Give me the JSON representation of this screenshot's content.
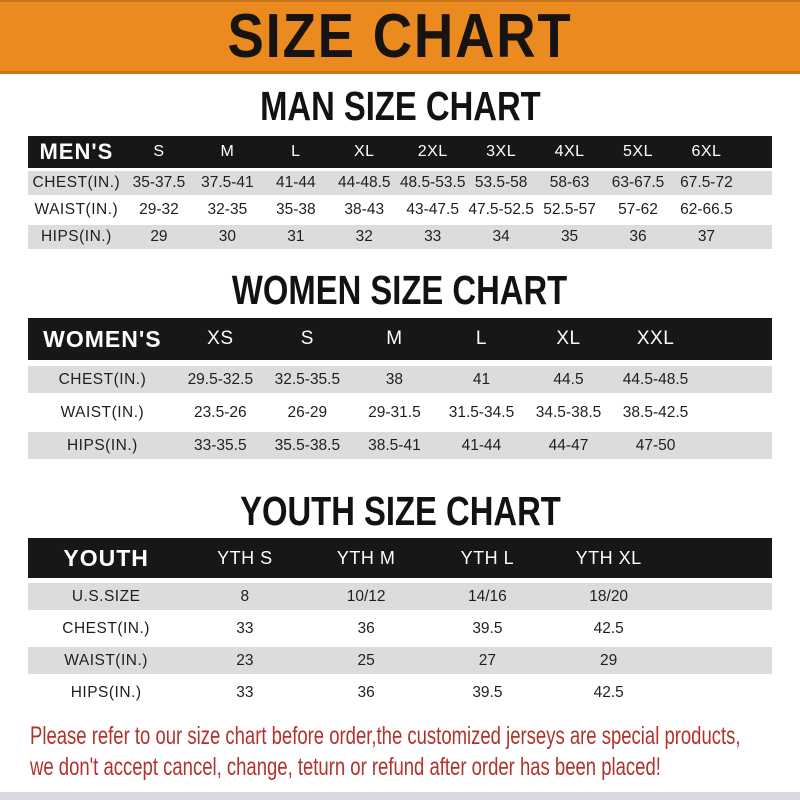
{
  "banner": {
    "title": "SIZE CHART"
  },
  "sections": [
    {
      "heading": "MAN SIZE CHART",
      "table": {
        "header": [
          "MEN'S",
          "S",
          "M",
          "L",
          "XL",
          "2XL",
          "3XL",
          "4XL",
          "5XL",
          "6XL"
        ],
        "rows": [
          [
            "CHEST(IN.)",
            "35-37.5",
            "37.5-41",
            "41-44",
            "44-48.5",
            "48.5-53.5",
            "53.5-58",
            "58-63",
            "63-67.5",
            "67.5-72"
          ],
          [
            "WAIST(IN.)",
            "29-32",
            "32-35",
            "35-38",
            "38-43",
            "43-47.5",
            "47.5-52.5",
            "52.5-57",
            "57-62",
            "62-66.5"
          ],
          [
            "HIPS(IN.)",
            "29",
            "30",
            "31",
            "32",
            "33",
            "34",
            "35",
            "36",
            "37"
          ]
        ]
      }
    },
    {
      "heading": "WOMEN SIZE CHART",
      "table": {
        "header": [
          "WOMEN'S",
          "XS",
          "S",
          "M",
          "L",
          "XL",
          "XXL"
        ],
        "rows": [
          [
            "CHEST(IN.)",
            "29.5-32.5",
            "32.5-35.5",
            "38",
            "41",
            "44.5",
            "44.5-48.5"
          ],
          [
            "WAIST(IN.)",
            "23.5-26",
            "26-29",
            "29-31.5",
            "31.5-34.5",
            "34.5-38.5",
            "38.5-42.5"
          ],
          [
            "HIPS(IN.)",
            "33-35.5",
            "35.5-38.5",
            "38.5-41",
            "41-44",
            "44-47",
            "47-50"
          ]
        ]
      }
    },
    {
      "heading": "YOUTH SIZE CHART",
      "table": {
        "header": [
          "YOUTH",
          "YTH S",
          "YTH M",
          "YTH L",
          "YTH XL"
        ],
        "rows": [
          [
            "U.S.SIZE",
            "8",
            "10/12",
            "14/16",
            "18/20"
          ],
          [
            "CHEST(IN.)",
            "33",
            "36",
            "39.5",
            "42.5"
          ],
          [
            "WAIST(IN.)",
            "23",
            "25",
            "27",
            "29"
          ],
          [
            "HIPS(IN.)",
            "33",
            "36",
            "39.5",
            "42.5"
          ]
        ]
      }
    }
  ],
  "footnote": {
    "line1": "Please refer to our size chart before order,the customized jerseys are special products,",
    "line2": "we don't accept cancel, change, teturn or refund after order has been placed!"
  },
  "colors": {
    "banner_orange": "#EB8A1E",
    "banner_border": "#C97418",
    "bar_black": "#171717",
    "row_gray": "#DCDCDC",
    "text_dark": "#1F1F1F",
    "footnote_red": "#B2332C",
    "bottom_strip": "#D8D8DE"
  }
}
